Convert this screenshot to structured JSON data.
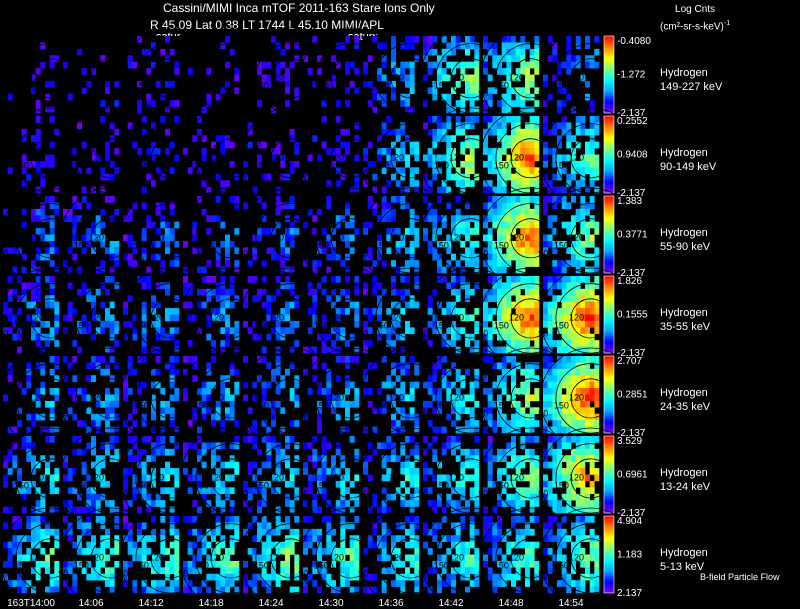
{
  "header": {
    "title": "Cassini/MIMI Inca mTOF  2011-163   Stare   Ions Only",
    "info": "R          45.09 Lat 0.38 LT 1744 L          45.10   MIMI/APL",
    "saturn_labels": [
      "satur",
      "saturn"
    ],
    "units_line1": "Log Cnts",
    "units_line2": "(cm²-sr-s-keV)",
    "units_sup": "-1"
  },
  "colors": {
    "background": "#000000",
    "colorbar": [
      "#8000ff",
      "#0000ff",
      "#00aaff",
      "#00ffff",
      "#80ff80",
      "#ffff00",
      "#ff8000",
      "#ff0000"
    ]
  },
  "chart_data": {
    "type": "heatmap",
    "title": "Cassini/MIMI Inca mTOF  2011-163   Stare   Ions Only",
    "time_labels": [
      "163T14:00",
      "14:06",
      "14:12",
      "14:18",
      "14:24",
      "14:30",
      "14:36",
      "14:42",
      "14:48",
      "14:54"
    ],
    "contour_labels": [
      "120",
      "150",
      "90"
    ],
    "footnote": "B-field Particle Flow",
    "rows": [
      {
        "species": "Hydrogen",
        "energy": "149-227 keV",
        "cbar": [
          "-0.4080",
          "-1.272",
          "-2.137"
        ],
        "intensity": [
          0.05,
          0.05,
          0.05,
          0.05,
          0.05,
          0.08,
          0.3,
          0.55,
          0.6,
          0.3
        ]
      },
      {
        "species": "Hydrogen",
        "energy": "90-149 keV",
        "cbar": [
          "0.2552",
          "0.9408",
          "-2.137"
        ],
        "intensity": [
          0.08,
          0.08,
          0.08,
          0.08,
          0.08,
          0.1,
          0.35,
          0.6,
          0.85,
          0.5
        ]
      },
      {
        "species": "Hydrogen",
        "energy": "55-90 keV",
        "cbar": [
          "1.383",
          "0.3771",
          "-2.137"
        ],
        "intensity": [
          0.25,
          0.25,
          0.22,
          0.22,
          0.22,
          0.25,
          0.35,
          0.45,
          0.85,
          0.55
        ]
      },
      {
        "species": "Hydrogen",
        "energy": "35-55 keV",
        "cbar": [
          "1.826",
          "0.1555",
          "-2.137"
        ],
        "intensity": [
          0.28,
          0.28,
          0.28,
          0.28,
          0.28,
          0.28,
          0.35,
          0.45,
          0.85,
          0.9
        ]
      },
      {
        "species": "Hydrogen",
        "energy": "24-35 keV",
        "cbar": [
          "2.707",
          "0.2851",
          "-2.137"
        ],
        "intensity": [
          0.3,
          0.3,
          0.3,
          0.3,
          0.3,
          0.3,
          0.35,
          0.4,
          0.6,
          0.92
        ]
      },
      {
        "species": "Hydrogen",
        "energy": "13-24 keV",
        "cbar": [
          "3.529",
          "0.6961",
          "-2.137"
        ],
        "intensity": [
          0.4,
          0.38,
          0.38,
          0.38,
          0.38,
          0.38,
          0.4,
          0.45,
          0.55,
          0.8
        ]
      },
      {
        "species": "Hydrogen",
        "energy": "5-13 keV",
        "cbar": [
          "4.904",
          "1.183",
          "2.137"
        ],
        "intensity": [
          0.5,
          0.5,
          0.5,
          0.5,
          0.55,
          0.5,
          0.45,
          0.45,
          0.5,
          0.55
        ]
      }
    ]
  }
}
